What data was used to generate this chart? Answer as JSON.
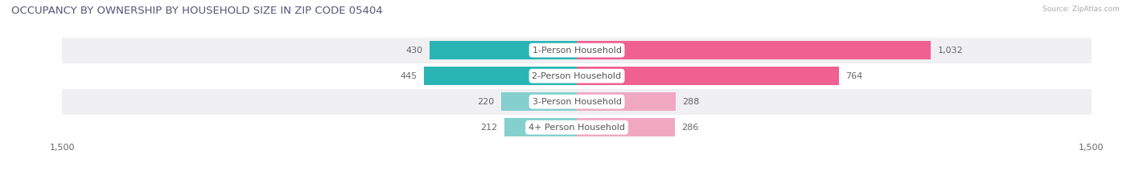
{
  "title": "OCCUPANCY BY OWNERSHIP BY HOUSEHOLD SIZE IN ZIP CODE 05404",
  "source": "Source: ZipAtlas.com",
  "categories": [
    "1-Person Household",
    "2-Person Household",
    "3-Person Household",
    "4+ Person Household"
  ],
  "owner_values": [
    430,
    445,
    220,
    212
  ],
  "renter_values": [
    1032,
    764,
    288,
    286
  ],
  "owner_colors": [
    "#2ab5b5",
    "#2ab5b5",
    "#85cfcf",
    "#85cfcf"
  ],
  "renter_colors": [
    "#f06090",
    "#f06090",
    "#f0a8c0",
    "#f0a8c0"
  ],
  "owner_color_legend": "#2ab5b5",
  "renter_color_legend": "#f06090",
  "row_bg_colors": [
    "#f0f0f2",
    "#ffffff",
    "#f0f0f2",
    "#ffffff"
  ],
  "x_max": 1500,
  "x_min": -1500,
  "label_fontsize": 8.0,
  "title_fontsize": 9.5,
  "bar_height": 0.72,
  "figsize": [
    14.06,
    2.33
  ],
  "dpi": 100
}
